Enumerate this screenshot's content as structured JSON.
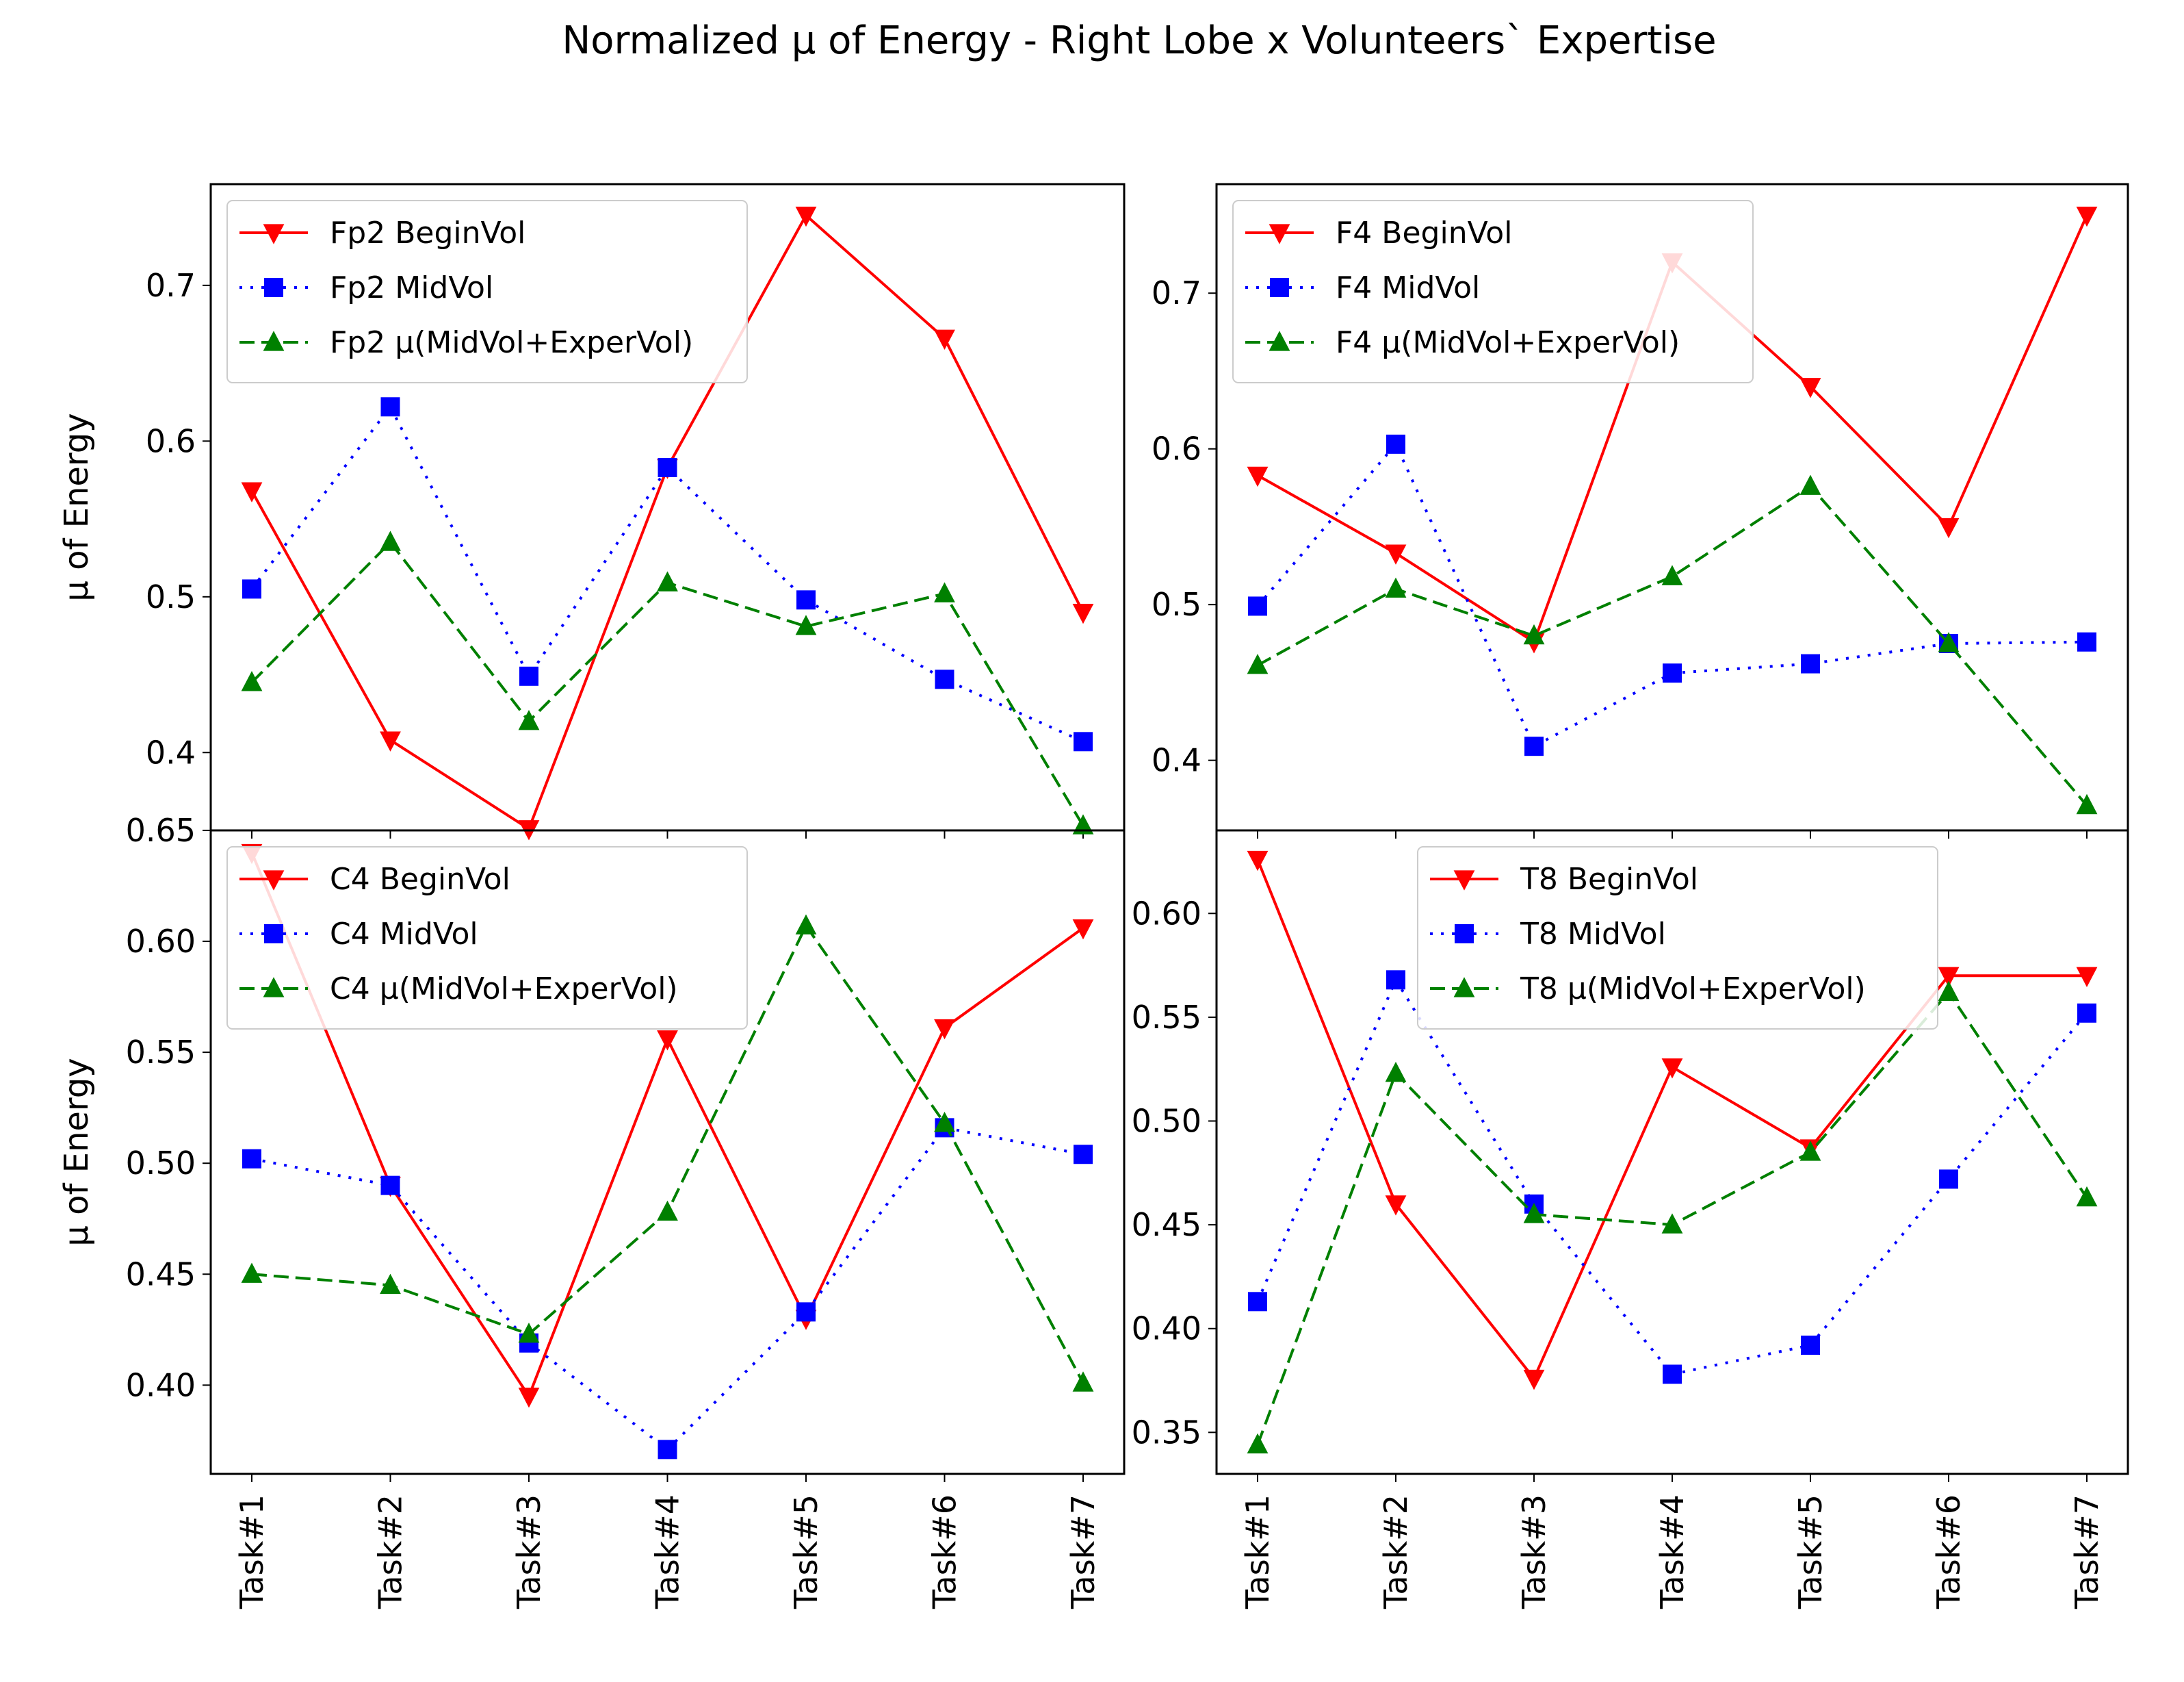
{
  "figure_title": "Normalized μ of Energy - Right Lobe x Volunteers` Expertise",
  "chart_data": [
    {
      "type": "line",
      "panel": "top-left",
      "title": "",
      "xlabel": "",
      "ylabel": "μ of Energy",
      "categories": [
        "Task#1",
        "Task#2",
        "Task#3",
        "Task#4",
        "Task#5",
        "Task#6",
        "Task#7"
      ],
      "ylim": [
        0.35,
        0.765
      ],
      "yticks": [
        0.4,
        0.5,
        0.6,
        0.7
      ],
      "ytick_labels": [
        "0.4",
        "0.5",
        "0.6",
        "0.7"
      ],
      "legend_location": "upper-left",
      "series": [
        {
          "name": "Fp2 BeginVol",
          "color": "#ff0000",
          "marker": "triangle-down",
          "linestyle": "solid",
          "values": [
            0.568,
            0.408,
            0.351,
            0.583,
            0.745,
            0.666,
            0.49
          ]
        },
        {
          "name": "Fp2 MidVol",
          "color": "#0000ff",
          "marker": "square",
          "linestyle": "dotted",
          "values": [
            0.505,
            0.622,
            0.449,
            0.583,
            0.498,
            0.447,
            0.407
          ]
        },
        {
          "name": "Fp2 μ(MidVol+ExperVol)",
          "color": "#008000",
          "marker": "triangle-up",
          "linestyle": "dashed",
          "values": [
            0.445,
            0.535,
            0.42,
            0.509,
            0.481,
            0.502,
            0.353
          ]
        }
      ]
    },
    {
      "type": "line",
      "panel": "top-right",
      "title": "",
      "xlabel": "",
      "ylabel": "",
      "categories": [
        "Task#1",
        "Task#2",
        "Task#3",
        "Task#4",
        "Task#5",
        "Task#6",
        "Task#7"
      ],
      "ylim": [
        0.355,
        0.77
      ],
      "yticks": [
        0.4,
        0.5,
        0.6,
        0.7
      ],
      "ytick_labels": [
        "0.4",
        "0.5",
        "0.6",
        "0.7"
      ],
      "legend_location": "upper-left",
      "series": [
        {
          "name": "F4 BeginVol",
          "color": "#ff0000",
          "marker": "triangle-down",
          "linestyle": "solid",
          "values": [
            0.583,
            0.533,
            0.476,
            0.72,
            0.64,
            0.55,
            0.75
          ]
        },
        {
          "name": "F4 MidVol",
          "color": "#0000ff",
          "marker": "square",
          "linestyle": "dotted",
          "values": [
            0.499,
            0.603,
            0.409,
            0.456,
            0.462,
            0.475,
            0.476
          ]
        },
        {
          "name": "F4 μ(MidVol+ExperVol)",
          "color": "#008000",
          "marker": "triangle-up",
          "linestyle": "dashed",
          "values": [
            0.461,
            0.51,
            0.48,
            0.518,
            0.576,
            0.475,
            0.371
          ]
        }
      ]
    },
    {
      "type": "line",
      "panel": "bottom-left",
      "title": "",
      "xlabel": "",
      "ylabel": "μ of Energy",
      "categories": [
        "Task#1",
        "Task#2",
        "Task#3",
        "Task#4",
        "Task#5",
        "Task#6",
        "Task#7"
      ],
      "ylim": [
        0.36,
        0.65
      ],
      "yticks": [
        0.4,
        0.45,
        0.5,
        0.55,
        0.6,
        0.65
      ],
      "ytick_labels": [
        "0.40",
        "0.45",
        "0.50",
        "0.55",
        "0.60",
        "0.65"
      ],
      "legend_location": "upper-left",
      "series": [
        {
          "name": "C4 BeginVol",
          "color": "#ff0000",
          "marker": "triangle-down",
          "linestyle": "solid",
          "values": [
            0.64,
            0.49,
            0.395,
            0.556,
            0.43,
            0.561,
            0.606
          ]
        },
        {
          "name": "C4 MidVol",
          "color": "#0000ff",
          "marker": "square",
          "linestyle": "dotted",
          "values": [
            0.502,
            0.49,
            0.419,
            0.371,
            0.433,
            0.516,
            0.504
          ]
        },
        {
          "name": "C4 μ(MidVol+ExperVol)",
          "color": "#008000",
          "marker": "triangle-up",
          "linestyle": "dashed",
          "values": [
            0.45,
            0.445,
            0.423,
            0.478,
            0.607,
            0.518,
            0.401
          ]
        }
      ]
    },
    {
      "type": "line",
      "panel": "bottom-right",
      "title": "",
      "xlabel": "",
      "ylabel": "",
      "categories": [
        "Task#1",
        "Task#2",
        "Task#3",
        "Task#4",
        "Task#5",
        "Task#6",
        "Task#7"
      ],
      "ylim": [
        0.33,
        0.64
      ],
      "yticks": [
        0.35,
        0.4,
        0.45,
        0.5,
        0.55,
        0.6
      ],
      "ytick_labels": [
        "0.35",
        "0.40",
        "0.45",
        "0.50",
        "0.55",
        "0.60"
      ],
      "legend_location": "upper-center",
      "series": [
        {
          "name": "T8 BeginVol",
          "color": "#ff0000",
          "marker": "triangle-down",
          "linestyle": "solid",
          "values": [
            0.626,
            0.46,
            0.376,
            0.526,
            0.487,
            0.57,
            0.57
          ]
        },
        {
          "name": "T8 MidVol",
          "color": "#0000ff",
          "marker": "square",
          "linestyle": "dotted",
          "values": [
            0.413,
            0.568,
            0.46,
            0.378,
            0.392,
            0.472,
            0.552
          ]
        },
        {
          "name": "T8 μ(MidVol+ExperVol)",
          "color": "#008000",
          "marker": "triangle-up",
          "linestyle": "dashed",
          "values": [
            0.344,
            0.523,
            0.455,
            0.45,
            0.485,
            0.562,
            0.463
          ]
        }
      ]
    }
  ]
}
